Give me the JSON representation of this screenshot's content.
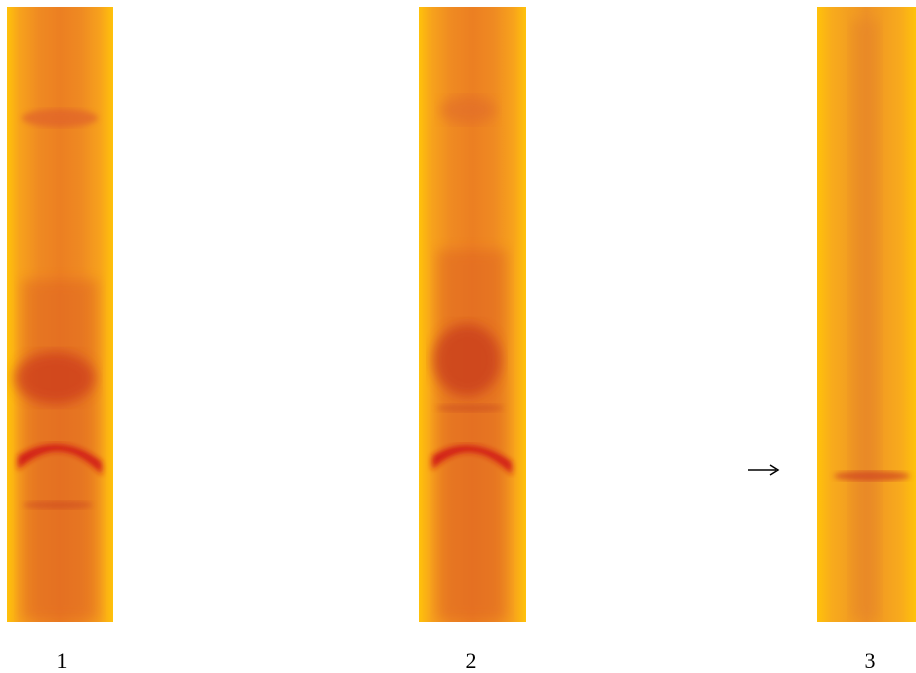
{
  "lanes": [
    {
      "label": "1"
    },
    {
      "label": "2"
    },
    {
      "label": "3"
    }
  ]
}
